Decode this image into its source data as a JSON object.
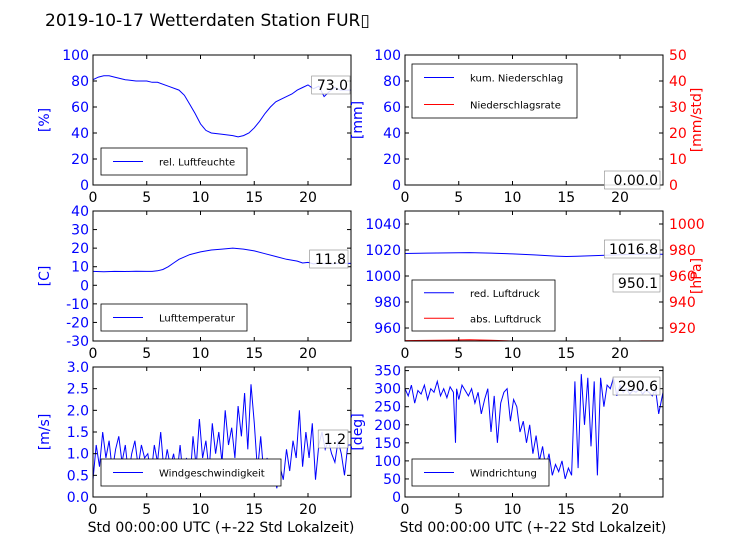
{
  "title": "2019-10-17 Wetterdaten Station FUR▯",
  "xlabel": "Std 00:00:00 UTC (+-22 Std Lokalzeit)",
  "colors": {
    "blue": "#0000ff",
    "red": "#ff0000",
    "black": "#000000"
  },
  "chart_data": [
    {
      "type": "line",
      "ylabel": "[%]",
      "xlim": [
        0,
        24
      ],
      "ylim": [
        0,
        100
      ],
      "xticks": [
        0,
        5,
        10,
        15,
        20
      ],
      "yticks": [
        0,
        20,
        40,
        60,
        80,
        100
      ],
      "annotation": "73.0",
      "legend": "bottom-left",
      "series": [
        {
          "name": "rel. Luftfeuchte",
          "color": "#0000ff",
          "x": [
            0,
            0.5,
            1,
            1.5,
            2,
            3,
            4,
            5,
            5.5,
            6,
            7,
            8,
            8.5,
            9,
            9.5,
            10,
            10.5,
            11,
            12,
            13,
            13.5,
            14,
            14.5,
            15,
            15.5,
            16,
            16.5,
            17,
            17.5,
            18,
            18.5,
            19,
            19.5,
            20,
            20.5,
            21,
            21.5,
            22,
            22.5,
            23,
            24
          ],
          "y": [
            81,
            83,
            84,
            84,
            83,
            81,
            80,
            80,
            79,
            79,
            76,
            73,
            69,
            62,
            55,
            47,
            42,
            40,
            39,
            38,
            37,
            38,
            40,
            44,
            49,
            55,
            60,
            64,
            66,
            68,
            70,
            73,
            75,
            77,
            74,
            76,
            68,
            72,
            75,
            73,
            73
          ]
        }
      ]
    },
    {
      "type": "line",
      "ylabel": "[mm]",
      "y2label": "[mm/std]",
      "xlim": [
        0,
        24
      ],
      "ylim": [
        0,
        100
      ],
      "y2lim": [
        0,
        50
      ],
      "xticks": [
        0,
        5,
        10,
        15,
        20
      ],
      "yticks": [
        0,
        20,
        40,
        60,
        80,
        100
      ],
      "y2ticks": [
        0,
        10,
        20,
        30,
        40,
        50
      ],
      "annotation": "0.00.0",
      "legend": "top-left",
      "series": [
        {
          "name": "kum. Niederschlag",
          "color": "#0000ff",
          "x": [
            0,
            24
          ],
          "y": [
            0,
            0
          ]
        },
        {
          "name": "Niederschlagsrate",
          "color": "#ff0000",
          "x": [
            0,
            24
          ],
          "y": [
            0,
            0
          ]
        }
      ]
    },
    {
      "type": "line",
      "ylabel": "[C]",
      "xlim": [
        0,
        24
      ],
      "ylim": [
        -30,
        40
      ],
      "xticks": [
        0,
        5,
        10,
        15,
        20
      ],
      "yticks": [
        -30,
        -20,
        -10,
        0,
        10,
        20,
        30,
        40
      ],
      "annotation": "11.8",
      "legend": "bottom-left",
      "series": [
        {
          "name": "Lufttemperatur",
          "color": "#0000ff",
          "x": [
            0,
            1,
            2,
            3,
            4,
            5,
            5.5,
            6,
            6.5,
            7,
            7.5,
            8,
            9,
            10,
            11,
            12,
            13,
            14,
            15,
            16,
            17,
            18,
            19,
            19.5,
            20,
            20.5,
            21,
            22,
            23,
            24
          ],
          "y": [
            7.5,
            7.3,
            7.5,
            7.4,
            7.6,
            7.5,
            7.5,
            7.8,
            8.5,
            10,
            12,
            14,
            16.5,
            18,
            19,
            19.5,
            20,
            19.5,
            18.5,
            17,
            15.5,
            14,
            13,
            12,
            12.3,
            11.5,
            11.8,
            11.5,
            11.8,
            11.8
          ]
        }
      ]
    },
    {
      "type": "line",
      "ylabel": "",
      "y2label": "[hPa]",
      "xlim": [
        0,
        24
      ],
      "ylim": [
        950,
        1050
      ],
      "y2lim": [
        910,
        1010
      ],
      "xticks": [
        0,
        5,
        10,
        15,
        20
      ],
      "yticks": [
        960,
        980,
        1000,
        1020,
        1040
      ],
      "y2ticks": [
        920,
        940,
        960,
        980,
        1000
      ],
      "annotations": [
        "1016.8",
        "950.1"
      ],
      "legend": "bottom-left",
      "series": [
        {
          "name": "red. Luftdruck",
          "color": "#0000ff",
          "x": [
            0,
            2,
            4,
            6,
            8,
            10,
            12,
            14,
            15,
            16,
            18,
            20,
            22,
            24
          ],
          "y": [
            1017.3,
            1017.6,
            1017.8,
            1018.0,
            1017.6,
            1017.0,
            1016.2,
            1015.3,
            1015.0,
            1015.2,
            1015.8,
            1016.4,
            1016.8,
            1016.8
          ]
        },
        {
          "name": "abs. Luftdruck",
          "color": "#ff0000",
          "x": [
            0,
            2,
            4,
            6,
            8,
            10,
            12,
            14,
            15,
            16,
            18,
            20,
            22,
            24
          ],
          "y": [
            950.3,
            950.5,
            950.7,
            950.9,
            950.6,
            950.0,
            949.2,
            948.4,
            948.1,
            948.3,
            948.9,
            949.6,
            950.1,
            950.1
          ]
        }
      ]
    },
    {
      "type": "line",
      "ylabel": "[m/s]",
      "xlim": [
        0,
        24
      ],
      "ylim": [
        0,
        3
      ],
      "xticks": [
        0,
        5,
        10,
        15,
        20
      ],
      "yticks": [
        0.0,
        0.5,
        1.0,
        1.5,
        2.0,
        2.5,
        3.0
      ],
      "annotation": "1.2",
      "legend": "bottom-left",
      "series": [
        {
          "name": "Windgeschwindigkeit",
          "color": "#0000ff",
          "x": [
            0,
            0.3,
            0.6,
            0.9,
            1.2,
            1.5,
            1.8,
            2.1,
            2.4,
            2.7,
            3.0,
            3.3,
            3.6,
            3.9,
            4.2,
            4.5,
            4.8,
            5.1,
            5.4,
            5.7,
            6.0,
            6.3,
            6.6,
            6.9,
            7.2,
            7.5,
            7.8,
            8.1,
            8.4,
            8.7,
            9.0,
            9.3,
            9.6,
            9.9,
            10.2,
            10.5,
            10.8,
            11.1,
            11.4,
            11.7,
            12.0,
            12.3,
            12.6,
            12.9,
            13.2,
            13.5,
            13.8,
            14.1,
            14.4,
            14.7,
            15.0,
            15.3,
            15.6,
            15.9,
            16.2,
            16.5,
            16.8,
            17.1,
            17.4,
            17.7,
            18.0,
            18.3,
            18.6,
            18.9,
            19.2,
            19.5,
            19.8,
            20.1,
            20.4,
            20.7,
            21.0,
            21.3,
            21.6,
            21.9,
            22.2,
            22.5,
            22.8,
            23.1,
            23.4,
            23.7,
            24.0
          ],
          "y": [
            0.4,
            1.2,
            0.7,
            1.5,
            0.9,
            1.3,
            0.6,
            1.1,
            1.4,
            0.8,
            1.2,
            0.5,
            1.0,
            1.3,
            0.7,
            1.2,
            0.9,
            1.0,
            0.5,
            1.2,
            0.8,
            1.5,
            0.6,
            1.1,
            0.7,
            1.0,
            0.5,
            1.2,
            0.4,
            0.9,
            0.3,
            1.4,
            0.7,
            1.8,
            0.9,
            1.3,
            0.6,
            1.7,
            1.0,
            1.5,
            0.8,
            2.0,
            1.2,
            1.6,
            0.9,
            2.1,
            1.4,
            2.4,
            1.1,
            2.6,
            1.7,
            0.6,
            1.4,
            0.5,
            0.9,
            0.3,
            0.8,
            0.2,
            0.7,
            0.4,
            1.1,
            0.6,
            1.3,
            0.9,
            2.0,
            0.7,
            1.5,
            0.9,
            1.7,
            0.4,
            1.2,
            1.5,
            1.1,
            1.3,
            1.0,
            0.8,
            1.3,
            1.0,
            0.5,
            1.2,
            1.2
          ]
        }
      ]
    },
    {
      "type": "line",
      "ylabel": "[deg]",
      "xlim": [
        0,
        24
      ],
      "ylim": [
        0,
        360
      ],
      "xticks": [
        0,
        5,
        10,
        15,
        20
      ],
      "yticks": [
        0,
        50,
        100,
        150,
        200,
        250,
        300,
        350
      ],
      "annotation": "290.6",
      "legend": "bottom-left",
      "series": [
        {
          "name": "Windrichtung",
          "color": "#0000ff",
          "x": [
            0,
            0.3,
            0.6,
            0.9,
            1.2,
            1.5,
            1.8,
            2.1,
            2.4,
            2.7,
            3.0,
            3.3,
            3.6,
            3.9,
            4.2,
            4.5,
            4.7,
            4.8,
            5.0,
            5.3,
            5.6,
            5.9,
            6.2,
            6.5,
            6.8,
            7.1,
            7.4,
            7.7,
            8.0,
            8.3,
            8.6,
            8.9,
            9.2,
            9.5,
            9.8,
            10.1,
            10.4,
            10.7,
            11.0,
            11.3,
            11.6,
            11.9,
            12.2,
            12.5,
            12.8,
            13.1,
            13.4,
            13.7,
            14.0,
            14.3,
            14.6,
            14.9,
            15.2,
            15.5,
            15.8,
            16.1,
            16.4,
            16.7,
            17.0,
            17.3,
            17.6,
            17.9,
            18.2,
            18.5,
            18.8,
            19.1,
            19.4,
            19.7,
            20.0,
            20.3,
            20.6,
            20.9,
            21.2,
            21.5,
            21.8,
            22.1,
            22.4,
            22.7,
            23.0,
            23.3,
            23.6,
            24.0
          ],
          "y": [
            300,
            280,
            310,
            260,
            295,
            285,
            310,
            270,
            300,
            290,
            320,
            280,
            300,
            275,
            305,
            290,
            150,
            300,
            270,
            310,
            295,
            280,
            300,
            260,
            290,
            230,
            270,
            300,
            180,
            280,
            150,
            260,
            290,
            300,
            210,
            270,
            250,
            180,
            210,
            150,
            200,
            120,
            170,
            100,
            140,
            80,
            120,
            60,
            90,
            70,
            100,
            50,
            80,
            60,
            320,
            80,
            340,
            200,
            330,
            140,
            320,
            60,
            330,
            250,
            310,
            300,
            330,
            280,
            310,
            290,
            300,
            285,
            295,
            290,
            300,
            285,
            295,
            290,
            280,
            300,
            230,
            290
          ]
        }
      ]
    }
  ]
}
